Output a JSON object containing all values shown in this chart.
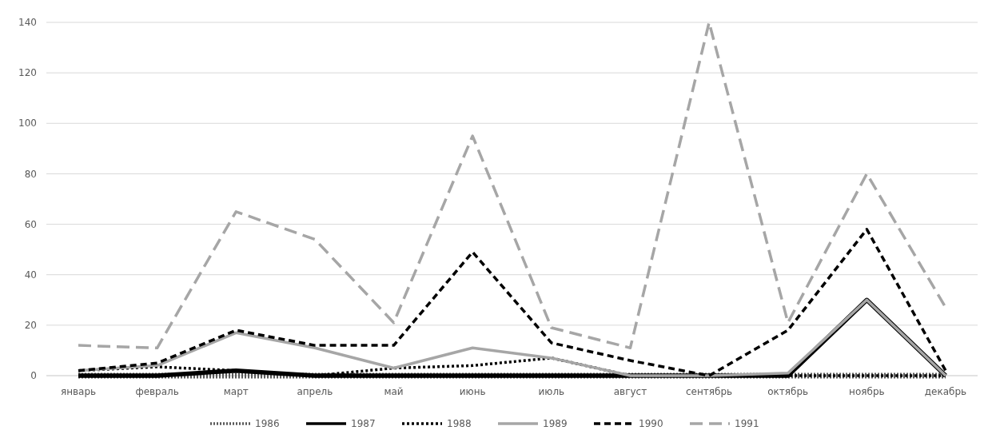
{
  "chart_data": {
    "type": "line",
    "categories": [
      "январь",
      "февраль",
      "март",
      "апрель",
      "май",
      "июнь",
      "июль",
      "август",
      "сентябрь",
      "октябрь",
      "ноябрь",
      "декабрь"
    ],
    "ylim": [
      0,
      140
    ],
    "yticks": [
      0,
      20,
      40,
      60,
      80,
      100,
      120,
      140
    ],
    "grid": "y",
    "legend": "bottom",
    "marker": "none",
    "series": [
      {
        "name": "1986",
        "color": "#595959",
        "line_style": "dotted",
        "values": [
          0,
          0,
          0,
          0,
          0,
          0,
          0,
          0,
          0,
          0,
          0,
          0
        ]
      },
      {
        "name": "1987",
        "color": "#000000",
        "line_style": "solid",
        "values": [
          0,
          0,
          2,
          0,
          0,
          0,
          0,
          0,
          0,
          0,
          30,
          0
        ]
      },
      {
        "name": "1988",
        "color": "#000000",
        "line_style": "dotted",
        "values": [
          2,
          3.5,
          2,
          0,
          3,
          4,
          7,
          0,
          0,
          0,
          0,
          0
        ]
      },
      {
        "name": "1989",
        "color": "#a6a6a6",
        "line_style": "solid",
        "values": [
          2,
          4,
          17,
          11,
          3,
          11,
          7,
          0,
          0,
          1,
          30,
          0
        ]
      },
      {
        "name": "1990",
        "color": "#000000",
        "line_style": "dashed",
        "values": [
          2,
          5,
          18,
          12,
          12,
          49,
          13,
          6,
          0,
          18,
          58,
          2
        ]
      },
      {
        "name": "1991",
        "color": "#a6a6a6",
        "line_style": "dashed",
        "values": [
          12,
          11,
          65,
          54,
          21,
          95,
          19,
          11,
          140,
          21,
          80,
          27
        ]
      }
    ]
  }
}
